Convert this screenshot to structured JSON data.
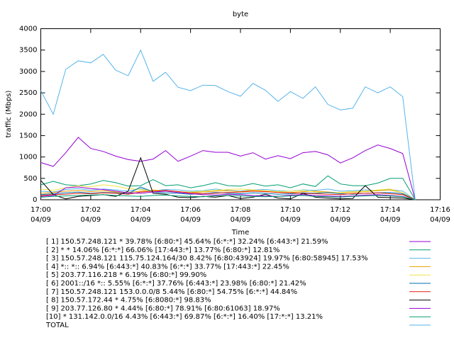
{
  "chart_data": {
    "type": "line",
    "title": "byte",
    "ylabel": "traffic (Mbps)",
    "xlabel": "Time",
    "xlim": [
      0,
      16
    ],
    "xticks": [
      {
        "value": 0,
        "label": "17:00",
        "date": "04/09"
      },
      {
        "value": 2,
        "label": "17:02",
        "date": "04/09"
      },
      {
        "value": 4,
        "label": "17:04",
        "date": "04/09"
      },
      {
        "value": 6,
        "label": "17:06",
        "date": "04/09"
      },
      {
        "value": 8,
        "label": "17:08",
        "date": "04/09"
      },
      {
        "value": 10,
        "label": "17:10",
        "date": "04/09"
      },
      {
        "value": 12,
        "label": "17:12",
        "date": "04/09"
      },
      {
        "value": 14,
        "label": "17:14",
        "date": "04/09"
      },
      {
        "value": 16,
        "label": "17:16",
        "date": "04/09"
      }
    ],
    "ylim": [
      0,
      4000
    ],
    "yticks": [
      0,
      500,
      1000,
      1500,
      2000,
      2500,
      3000,
      3500,
      4000
    ],
    "grid": false,
    "x": [
      0,
      0.5,
      1,
      1.5,
      2,
      2.5,
      3,
      3.5,
      4,
      4.5,
      5,
      5.5,
      6,
      6.5,
      7,
      7.5,
      8,
      8.5,
      9,
      9.5,
      10,
      10.5,
      11,
      11.5,
      12,
      12.5,
      13,
      13.5,
      14,
      14.5,
      15
    ],
    "series": [
      {
        "name": "[ 1] 150.57.248.121 * 39.78%  [6:80:*] 45.64% [6:*:*] 32.24% [6:443:*] 21.59%",
        "color": "#9400d3",
        "values": [
          870,
          780,
          1100,
          1460,
          1200,
          1130,
          1020,
          940,
          900,
          950,
          1150,
          900,
          1020,
          1150,
          1110,
          1110,
          1020,
          1100,
          950,
          1030,
          960,
          1100,
          1130,
          1050,
          860,
          980,
          1150,
          1280,
          1200,
          1080,
          0
        ]
      },
      {
        "name": "[ 2] * * 14.06%  [6:*:*] 66.06% [17:443:*] 13.77% [6:80:*] 12.81%",
        "color": "#009e73",
        "values": [
          350,
          430,
          350,
          330,
          370,
          450,
          400,
          320,
          330,
          470,
          330,
          350,
          280,
          330,
          400,
          330,
          320,
          380,
          320,
          350,
          280,
          370,
          310,
          560,
          370,
          330,
          330,
          390,
          500,
          500,
          0
        ]
      },
      {
        "name": "[ 3] 150.57.248.121 115.75.124.164/30 8.42%  [6:80:43924] 19.97% [6:80:58945] 17.53%",
        "color": "#56b4e9",
        "values": [
          200,
          180,
          240,
          260,
          220,
          250,
          230,
          200,
          260,
          210,
          240,
          230,
          200,
          210,
          250,
          220,
          200,
          230,
          240,
          210,
          200,
          230,
          220,
          250,
          200,
          210,
          230,
          220,
          240,
          200,
          0
        ]
      },
      {
        "name": "[ 4] *:: *:: 6.94%  [6:443:*] 40.83% [6:*:*] 33.77% [17:443:*] 22.45%",
        "color": "#e69f00",
        "values": [
          150,
          170,
          200,
          220,
          190,
          210,
          180,
          170,
          200,
          230,
          210,
          190,
          170,
          180,
          200,
          210,
          190,
          220,
          200,
          180,
          170,
          190,
          200,
          180,
          160,
          170,
          190,
          210,
          230,
          160,
          0
        ]
      },
      {
        "name": "[ 5] 203.77.116.218 * 6.19%  [6:80:*] 99.90%",
        "color": "#f0e442",
        "values": [
          250,
          220,
          280,
          330,
          300,
          350,
          320,
          260,
          240,
          220,
          210,
          190,
          180,
          200,
          220,
          240,
          250,
          230,
          210,
          190,
          200,
          220,
          180,
          160,
          170,
          190,
          200,
          230,
          250,
          160,
          0
        ]
      },
      {
        "name": "[ 6] 2001::/16 *:: 5.55%  [6:*:*] 37.76% [6:443:*] 23.98% [6:80:*] 21.42%",
        "color": "#0072b2",
        "values": [
          120,
          140,
          160,
          180,
          150,
          170,
          160,
          140,
          300,
          180,
          160,
          150,
          130,
          140,
          170,
          150,
          140,
          160,
          150,
          130,
          140,
          160,
          150,
          170,
          140,
          130,
          150,
          160,
          170,
          140,
          0
        ]
      },
      {
        "name": "[ 7] 150.57.248.121 153.0.0.0/8 5.44%  [6:80:*] 54.75% [6:*:*] 44.84%",
        "color": "#e51e10",
        "values": [
          100,
          120,
          130,
          150,
          140,
          160,
          150,
          130,
          180,
          200,
          220,
          190,
          160,
          140,
          150,
          170,
          180,
          200,
          190,
          170,
          160,
          150,
          140,
          130,
          120,
          140,
          150,
          160,
          140,
          120,
          0
        ]
      },
      {
        "name": "[ 8] 150.57.172.44 * 4.75%  [6:8080:*] 98.83%",
        "color": "#000000",
        "values": [
          450,
          120,
          20,
          80,
          100,
          120,
          80,
          200,
          980,
          150,
          130,
          60,
          50,
          80,
          60,
          100,
          30,
          60,
          130,
          40,
          20,
          150,
          60,
          40,
          20,
          30,
          330,
          60,
          50,
          40,
          0
        ]
      },
      {
        "name": "[ 9] 203.77.126.80 * 4.44%  [6:80:*] 78.91% [6:80:61063] 18.97%",
        "color": "#9400d3",
        "values": [
          80,
          100,
          280,
          300,
          260,
          240,
          200,
          160,
          150,
          180,
          200,
          170,
          140,
          120,
          110,
          130,
          120,
          100,
          90,
          80,
          110,
          120,
          100,
          90,
          80,
          90,
          110,
          120,
          100,
          80,
          0
        ]
      },
      {
        "name": "[10] * 131.142.0.0/16 4.43%  [6:443:*] 69.87% [6:*:*] 16.40% [17:*:*] 13.21%",
        "color": "#009e73",
        "values": [
          60,
          80,
          90,
          100,
          110,
          120,
          100,
          90,
          80,
          100,
          110,
          90,
          80,
          70,
          90,
          100,
          90,
          80,
          70,
          80,
          90,
          100,
          80,
          70,
          60,
          80,
          90,
          100,
          90,
          70,
          0
        ]
      },
      {
        "name": "TOTAL",
        "color": "#56b4e9",
        "values": [
          2550,
          2000,
          3050,
          3250,
          3200,
          3400,
          3030,
          2900,
          3500,
          2770,
          2980,
          2630,
          2550,
          2680,
          2670,
          2530,
          2420,
          2720,
          2560,
          2300,
          2530,
          2370,
          2640,
          2230,
          2100,
          2140,
          2640,
          2500,
          2640,
          2410,
          0
        ]
      }
    ]
  }
}
